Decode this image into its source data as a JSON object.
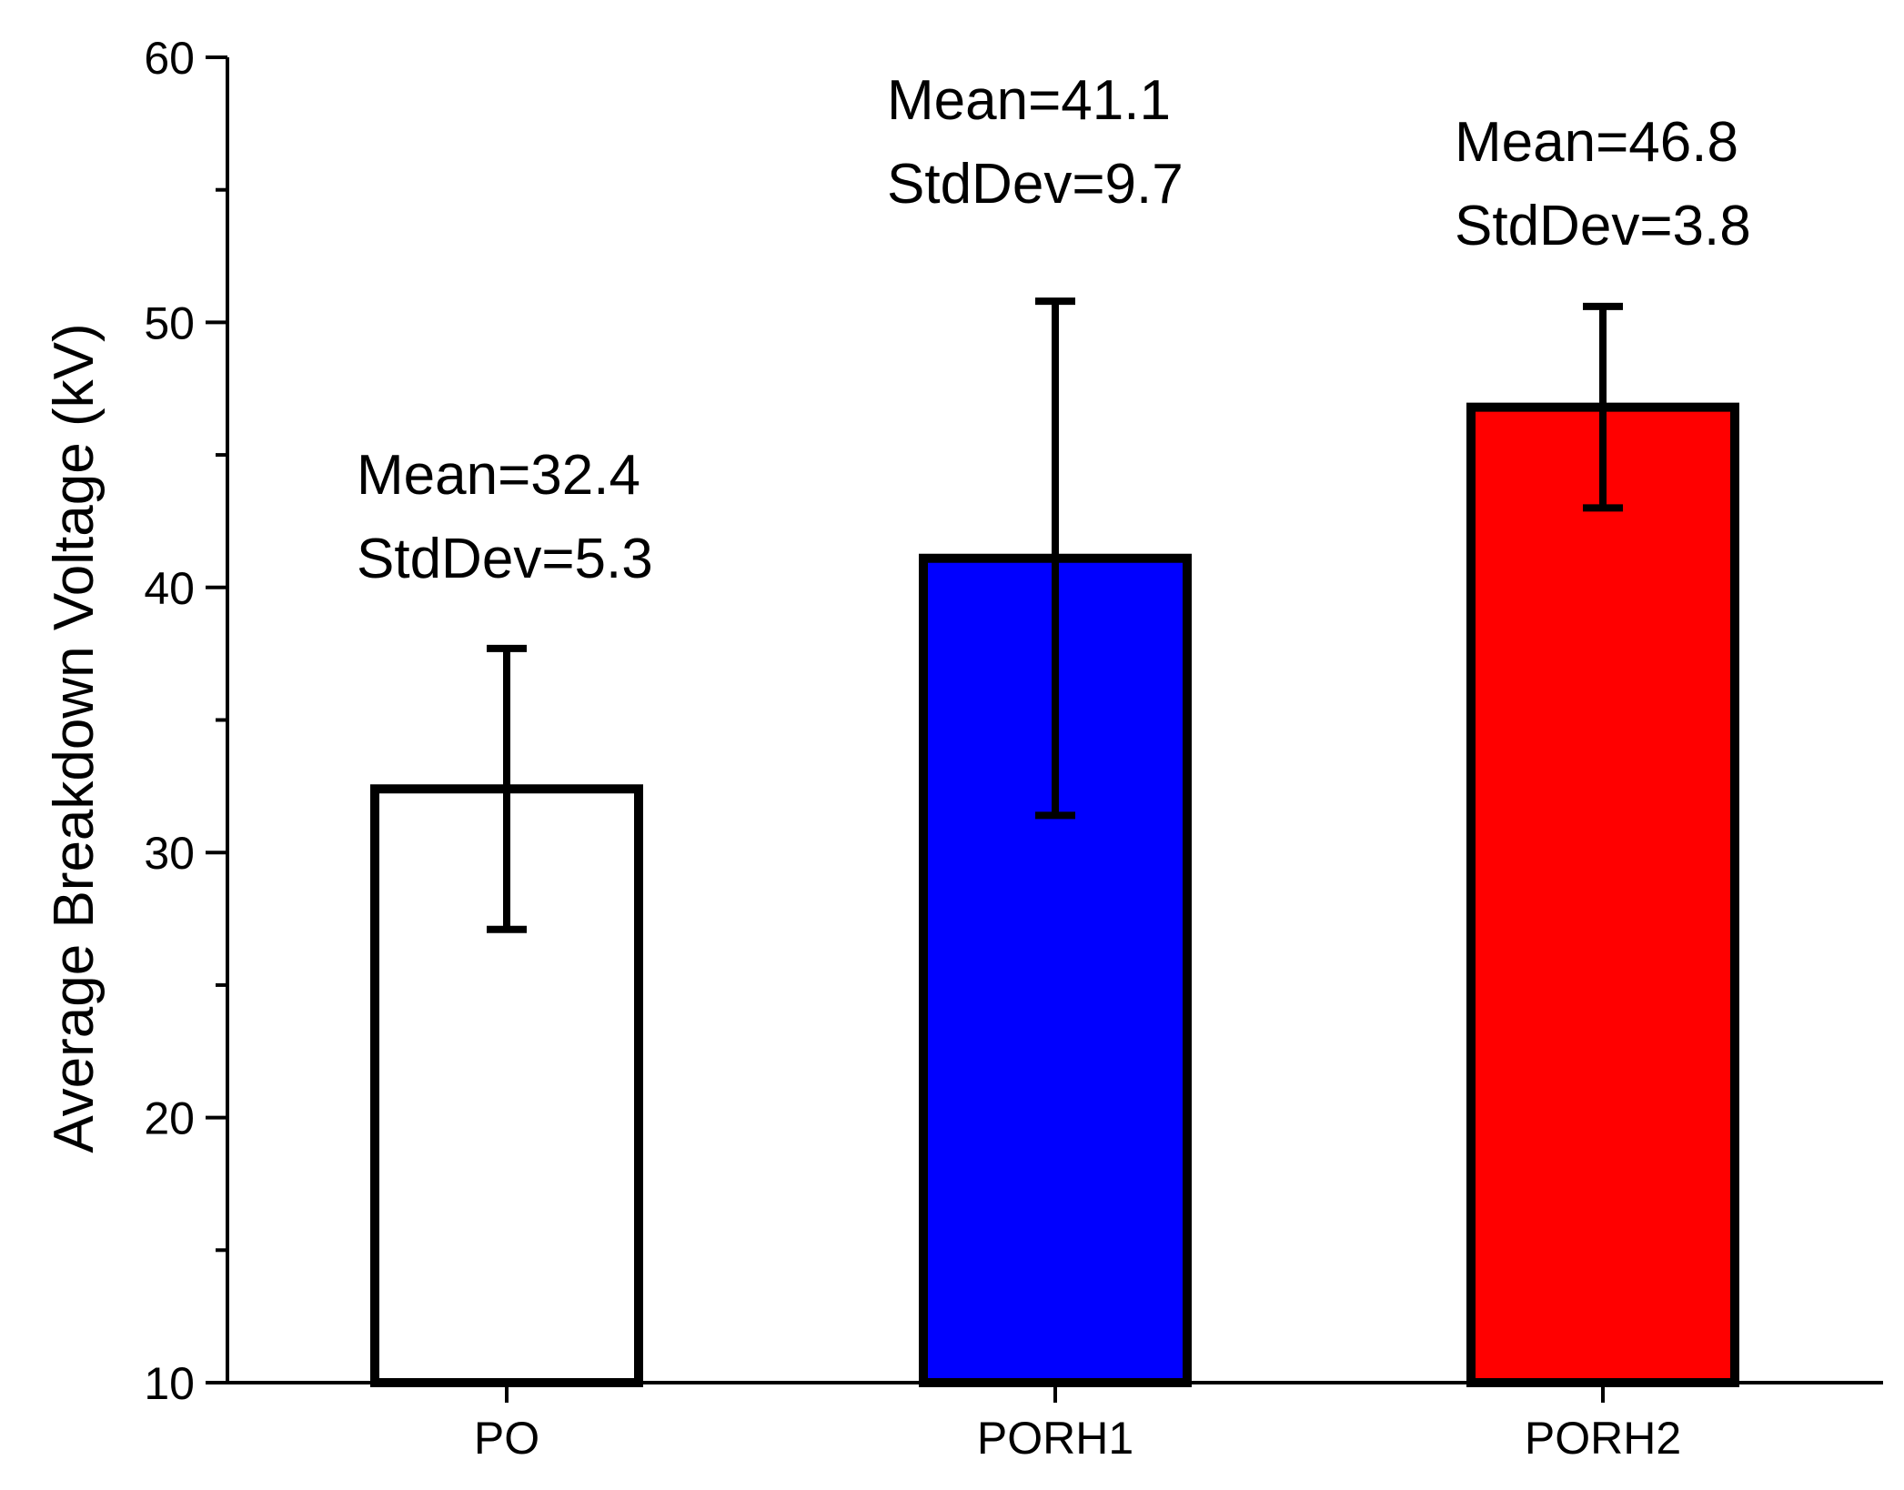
{
  "chart_data": {
    "type": "bar",
    "title": "",
    "xlabel": "",
    "ylabel": "Average Breakdown Voltage (kV)",
    "ylim": [
      10,
      60
    ],
    "yticks": [
      10,
      20,
      30,
      40,
      50,
      60
    ],
    "yminor_step": 5,
    "grid": false,
    "legend": "none",
    "categories": [
      "PO",
      "PORH1",
      "PORH2"
    ],
    "values": [
      32.4,
      41.1,
      46.8
    ],
    "errors": [
      5.3,
      9.7,
      3.8
    ],
    "colors": [
      "#ffffff",
      "#0000ff",
      "#ff0000"
    ],
    "annotations": [
      {
        "line1": "Mean=32.4",
        "line2": "StdDev=5.3"
      },
      {
        "line1": "Mean=41.1",
        "line2": "StdDev=9.7"
      },
      {
        "line1": "Mean=46.8",
        "line2": "StdDev=3.8"
      }
    ]
  }
}
